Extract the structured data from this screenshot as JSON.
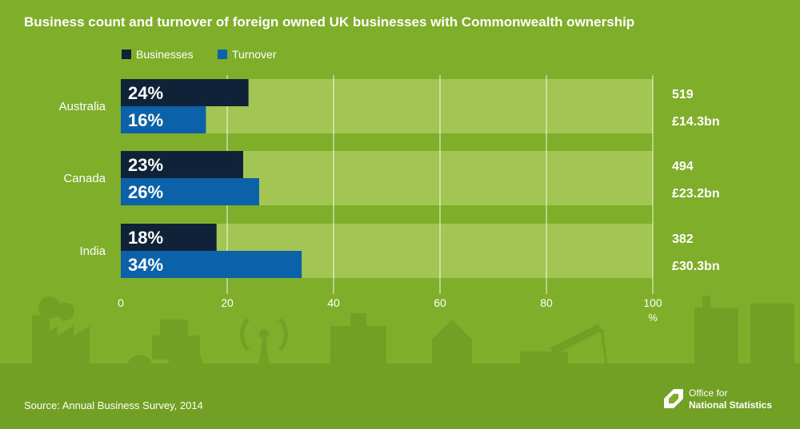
{
  "title": "Business count and turnover of foreign owned UK businesses with Commonwealth ownership",
  "source": "Source: Annual Business Survey, 2014",
  "logo": {
    "line1": "Office for",
    "line2": "National Statistics"
  },
  "colors": {
    "background": "#7fae2a",
    "track": "#a2c553",
    "businesses": "#0f2237",
    "turnover": "#0c62a8",
    "text": "#ffffff",
    "silhouette": "#72a024"
  },
  "chart_data": {
    "type": "bar",
    "orientation": "horizontal",
    "title": "Business count and turnover of foreign owned UK businesses with Commonwealth ownership",
    "xlabel": "%",
    "xlim": [
      0,
      100
    ],
    "xticks": [
      0,
      20,
      40,
      60,
      80,
      100
    ],
    "grid": true,
    "legend": "top-left",
    "categories": [
      "Australia",
      "Canada",
      "India"
    ],
    "series": [
      {
        "name": "Businesses",
        "values": [
          24,
          23,
          18
        ],
        "labels": [
          "24%",
          "23%",
          "18%"
        ],
        "totals": [
          "519",
          "494",
          "382"
        ]
      },
      {
        "name": "Turnover",
        "values": [
          16,
          26,
          34
        ],
        "labels": [
          "16%",
          "26%",
          "34%"
        ],
        "totals": [
          "£14.3bn",
          "£23.2bn",
          "£30.3bn"
        ]
      }
    ]
  }
}
